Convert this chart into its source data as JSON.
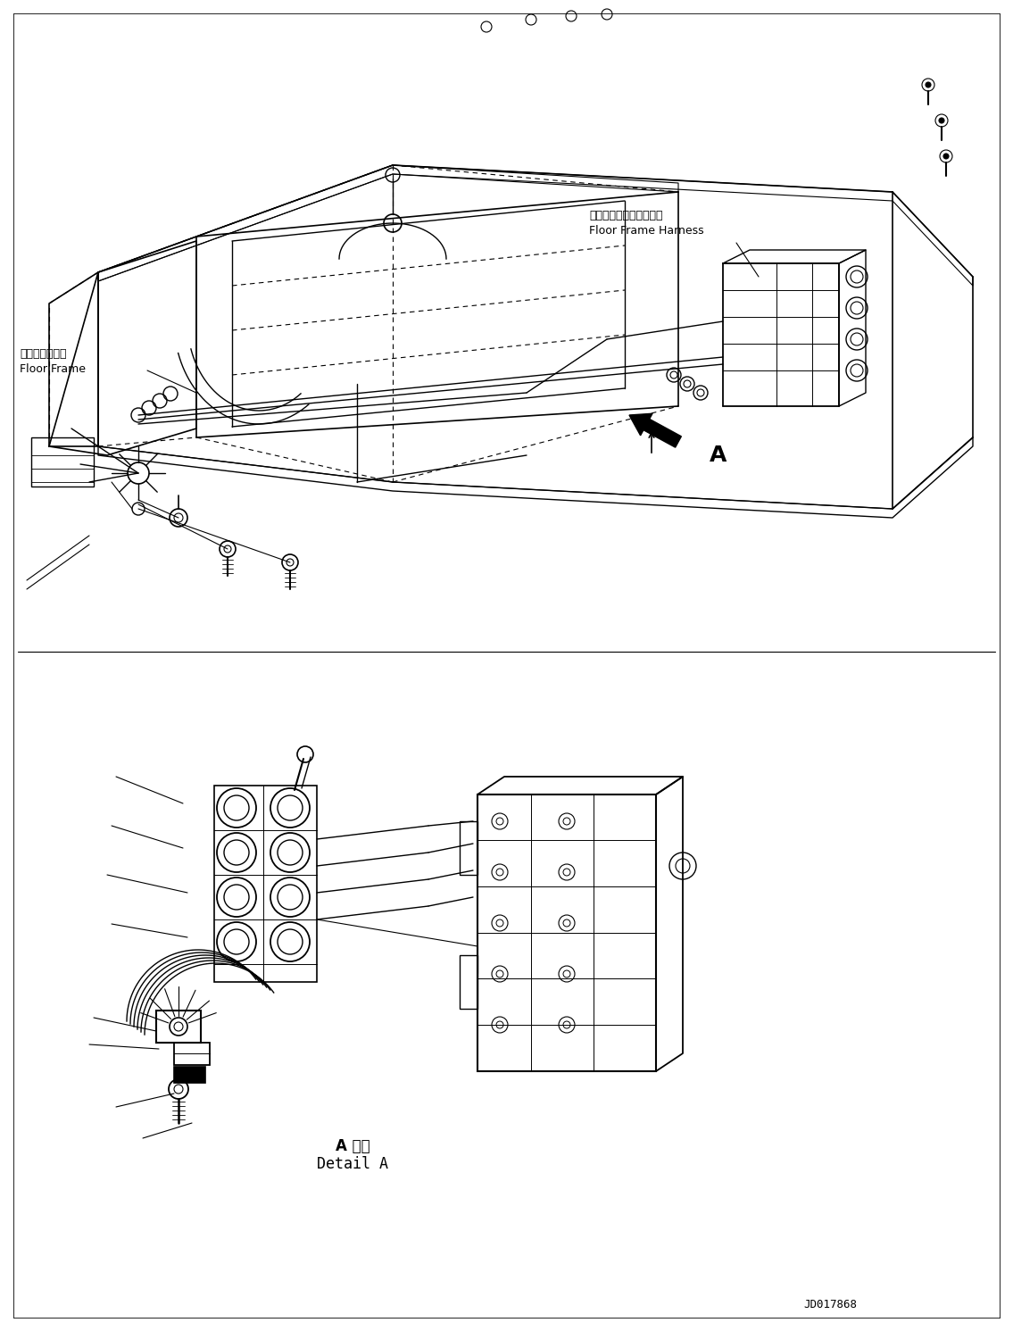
{
  "background_color": "#ffffff",
  "line_color": "#000000",
  "label_floor_frame_jp": "フロアフレーム",
  "label_floor_frame_en": "Floor Frame",
  "label_floor_frame_harness_jp": "フロアフレームハーネス",
  "label_floor_frame_harness_en": "Floor Frame Harness",
  "label_arrow_A": "A",
  "label_detail_jp": "A 詳細",
  "label_detail_en": "Detail A",
  "label_drawing_number": "JD017868",
  "figure_width": 11.35,
  "figure_height": 14.91,
  "dpi": 100
}
